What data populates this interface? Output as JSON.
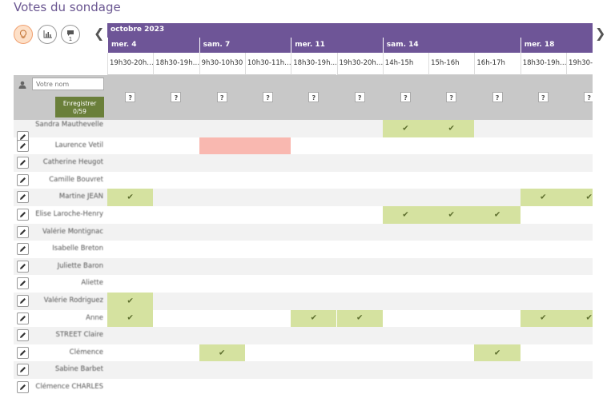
{
  "page": {
    "title": "Votes du sondage"
  },
  "views": [
    {
      "name": "idea-view",
      "icon": "lightbulb-icon"
    },
    {
      "name": "chart-view",
      "icon": "bar-chart-icon"
    },
    {
      "name": "comments-view",
      "icon": "comment-icon",
      "count": "1"
    }
  ],
  "month": "octobre 2023",
  "days": [
    {
      "label": "mer. 4",
      "slots": 2
    },
    {
      "label": "sam. 7",
      "slots": 2
    },
    {
      "label": "mer. 11",
      "slots": 2
    },
    {
      "label": "sam. 14",
      "slots": 3
    },
    {
      "label": "mer. 18",
      "slots": 2
    }
  ],
  "slots": [
    "19h30-20h…",
    "18h30-19h…",
    "9h30-10h30",
    "10h30-11h…",
    "18h30-19h…",
    "19h30-20h…",
    "14h-15h",
    "15h-16h",
    "16h-17h",
    "18h30-19h…",
    "19h30-2…"
  ],
  "new_vote": {
    "placeholder": "Votre nom",
    "save_label": "Enregistrer",
    "save_count": "0/59",
    "unknown": "?"
  },
  "voters": [
    {
      "name": "Sandra Mauthevelle",
      "votes": [
        "",
        "",
        "",
        "",
        "",
        "",
        "yes",
        "yes",
        "",
        "",
        ""
      ]
    },
    {
      "name": "Laurence Vetil",
      "votes": [
        "",
        "",
        "no",
        "no",
        "",
        "",
        "",
        "",
        "",
        "",
        ""
      ]
    },
    {
      "name": "Catherine Heugot",
      "votes": [
        "",
        "",
        "",
        "",
        "",
        "",
        "",
        "",
        "",
        "",
        ""
      ]
    },
    {
      "name": "Camille Bouvret",
      "votes": [
        "",
        "",
        "",
        "",
        "",
        "",
        "",
        "",
        "",
        "",
        ""
      ]
    },
    {
      "name": "Martine JEAN",
      "votes": [
        "yes",
        "",
        "",
        "",
        "",
        "",
        "",
        "",
        "",
        "yes",
        "yes"
      ]
    },
    {
      "name": "Elise Laroche-Henry",
      "votes": [
        "",
        "",
        "",
        "",
        "",
        "",
        "yes",
        "yes",
        "yes",
        "",
        ""
      ]
    },
    {
      "name": "Valérie Montignac",
      "votes": [
        "",
        "",
        "",
        "",
        "",
        "",
        "",
        "",
        "",
        "",
        ""
      ]
    },
    {
      "name": "Isabelle Breton",
      "votes": [
        "",
        "",
        "",
        "",
        "",
        "",
        "",
        "",
        "",
        "",
        ""
      ]
    },
    {
      "name": "Juliette Baron",
      "votes": [
        "",
        "",
        "",
        "",
        "",
        "",
        "",
        "",
        "",
        "",
        ""
      ]
    },
    {
      "name": "Aliette",
      "votes": [
        "",
        "",
        "",
        "",
        "",
        "",
        "",
        "",
        "",
        "",
        ""
      ]
    },
    {
      "name": "Valérie Rodriguez",
      "votes": [
        "yes",
        "",
        "",
        "",
        "",
        "",
        "",
        "",
        "",
        "",
        ""
      ]
    },
    {
      "name": "Anne",
      "votes": [
        "yes",
        "",
        "",
        "",
        "yes",
        "yes",
        "",
        "",
        "",
        "yes",
        "yes"
      ]
    },
    {
      "name": "STREET Claire",
      "votes": [
        "",
        "",
        "",
        "",
        "",
        "",
        "",
        "",
        "",
        "",
        ""
      ]
    },
    {
      "name": "Clémence",
      "votes": [
        "",
        "",
        "yes",
        "",
        "",
        "",
        "",
        "",
        "yes",
        "",
        ""
      ]
    },
    {
      "name": "Sabine Barbet",
      "votes": [
        "",
        "",
        "",
        "",
        "",
        "",
        "",
        "",
        "",
        "",
        ""
      ]
    },
    {
      "name": "Clémence CHARLES",
      "votes": [
        "",
        "",
        "",
        "",
        "",
        "",
        "",
        "",
        "",
        "",
        ""
      ]
    }
  ],
  "colors": {
    "header": "#6e5597",
    "yes": "#d5e2a0",
    "no": "#f9b8b0",
    "save": "#6a7f3a"
  }
}
